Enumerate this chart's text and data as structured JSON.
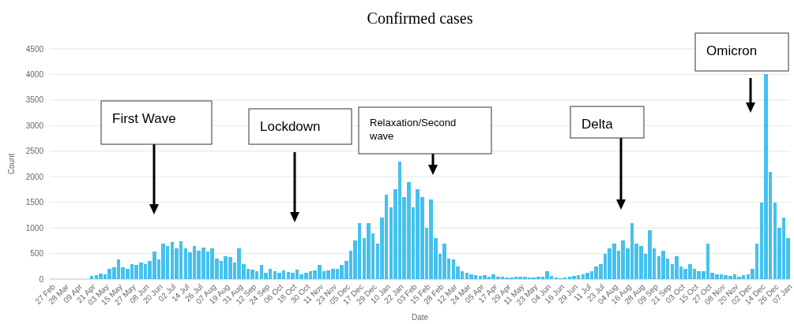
{
  "chart_data": {
    "type": "bar",
    "title": "Confirmed cases",
    "xlabel": "Date",
    "ylabel": "Count",
    "color": "#45c1ee",
    "grid": "y",
    "ylim": [
      0,
      4500
    ],
    "yticks": [
      0,
      500,
      1000,
      1500,
      2000,
      2500,
      3000,
      3500,
      4000,
      4500
    ],
    "categories": [
      "27 Feb",
      null,
      null,
      "28 Mar",
      null,
      null,
      "09 Apr",
      null,
      null,
      "21 Apr",
      null,
      null,
      "03 May",
      null,
      null,
      "15 May",
      null,
      null,
      "27 May",
      null,
      null,
      "08 Jun",
      null,
      null,
      "20 Jun",
      null,
      null,
      "02 Jul",
      null,
      null,
      "14 Jul",
      null,
      null,
      "26 Jul",
      null,
      null,
      "07 Aug",
      null,
      null,
      "19 Aug",
      null,
      null,
      "31 Aug",
      null,
      null,
      "12 Sep",
      null,
      null,
      "24 Sep",
      null,
      null,
      "06 Oct",
      null,
      null,
      "18 Oct",
      null,
      null,
      "30 Oct",
      null,
      null,
      "11 Nov",
      null,
      null,
      "23 Nov",
      null,
      null,
      "05 Dec",
      null,
      null,
      "17 Dec",
      null,
      null,
      "29 Dec",
      null,
      null,
      "10 Jan",
      null,
      null,
      "22 Jan",
      null,
      null,
      "03 Feb",
      null,
      null,
      "15 Feb",
      null,
      null,
      "28 Feb",
      null,
      null,
      "12 Mar",
      null,
      null,
      "24 Mar",
      null,
      null,
      "05 Apr",
      null,
      null,
      "17 Apr",
      null,
      null,
      "29 Apr",
      null,
      null,
      "11 May",
      null,
      null,
      "23 May",
      null,
      null,
      "04 Jun",
      null,
      null,
      "16 Jun",
      null,
      null,
      "29 Jun",
      null,
      null,
      "11 Jul",
      null,
      null,
      "23 Jul",
      null,
      null,
      "04 Aug",
      null,
      null,
      "16 Aug",
      null,
      null,
      "28 Aug",
      null,
      null,
      "09 Sep",
      null,
      null,
      "21 Sep",
      null,
      null,
      "03 Oct",
      null,
      null,
      "15 Oct",
      null,
      null,
      "27 Oct",
      null,
      null,
      "08 Nov",
      null,
      null,
      "20 Nov",
      null,
      null,
      "02 Dec",
      null,
      null,
      "14 Dec",
      null,
      null,
      "26 Dec",
      null,
      null,
      "07 Jan"
    ],
    "values": [
      0,
      0,
      0,
      0,
      0,
      0,
      0,
      0,
      0,
      60,
      80,
      110,
      100,
      200,
      230,
      380,
      230,
      200,
      300,
      280,
      330,
      300,
      350,
      540,
      380,
      700,
      650,
      720,
      600,
      740,
      600,
      520,
      650,
      560,
      620,
      540,
      600,
      400,
      350,
      450,
      430,
      320,
      600,
      300,
      200,
      180,
      150,
      280,
      120,
      200,
      150,
      120,
      170,
      140,
      130,
      180,
      100,
      120,
      150,
      170,
      280,
      150,
      170,
      200,
      200,
      280,
      350,
      550,
      750,
      1100,
      800,
      1100,
      900,
      700,
      1200,
      1650,
      1400,
      1750,
      2300,
      1600,
      1900,
      1400,
      1750,
      1600,
      1000,
      1550,
      800,
      500,
      700,
      400,
      380,
      250,
      150,
      120,
      90,
      80,
      60,
      80,
      50,
      100,
      50,
      40,
      30,
      30,
      40,
      40,
      40,
      30,
      30,
      40,
      40,
      150,
      60,
      30,
      20,
      30,
      40,
      60,
      80,
      100,
      120,
      150,
      250,
      300,
      500,
      600,
      700,
      550,
      750,
      600,
      1100,
      700,
      650,
      500,
      950,
      600,
      450,
      550,
      400,
      300,
      450,
      250,
      200,
      300,
      200,
      150,
      150,
      700,
      120,
      100,
      100,
      80,
      60,
      100,
      50,
      80,
      100,
      200,
      700,
      1500,
      4000,
      2100,
      1500,
      1000,
      1200,
      800
    ],
    "annotations": [
      "First Wave",
      "Lockdown",
      "Relaxation/Second wave",
      "Delta",
      "Omicron"
    ]
  }
}
